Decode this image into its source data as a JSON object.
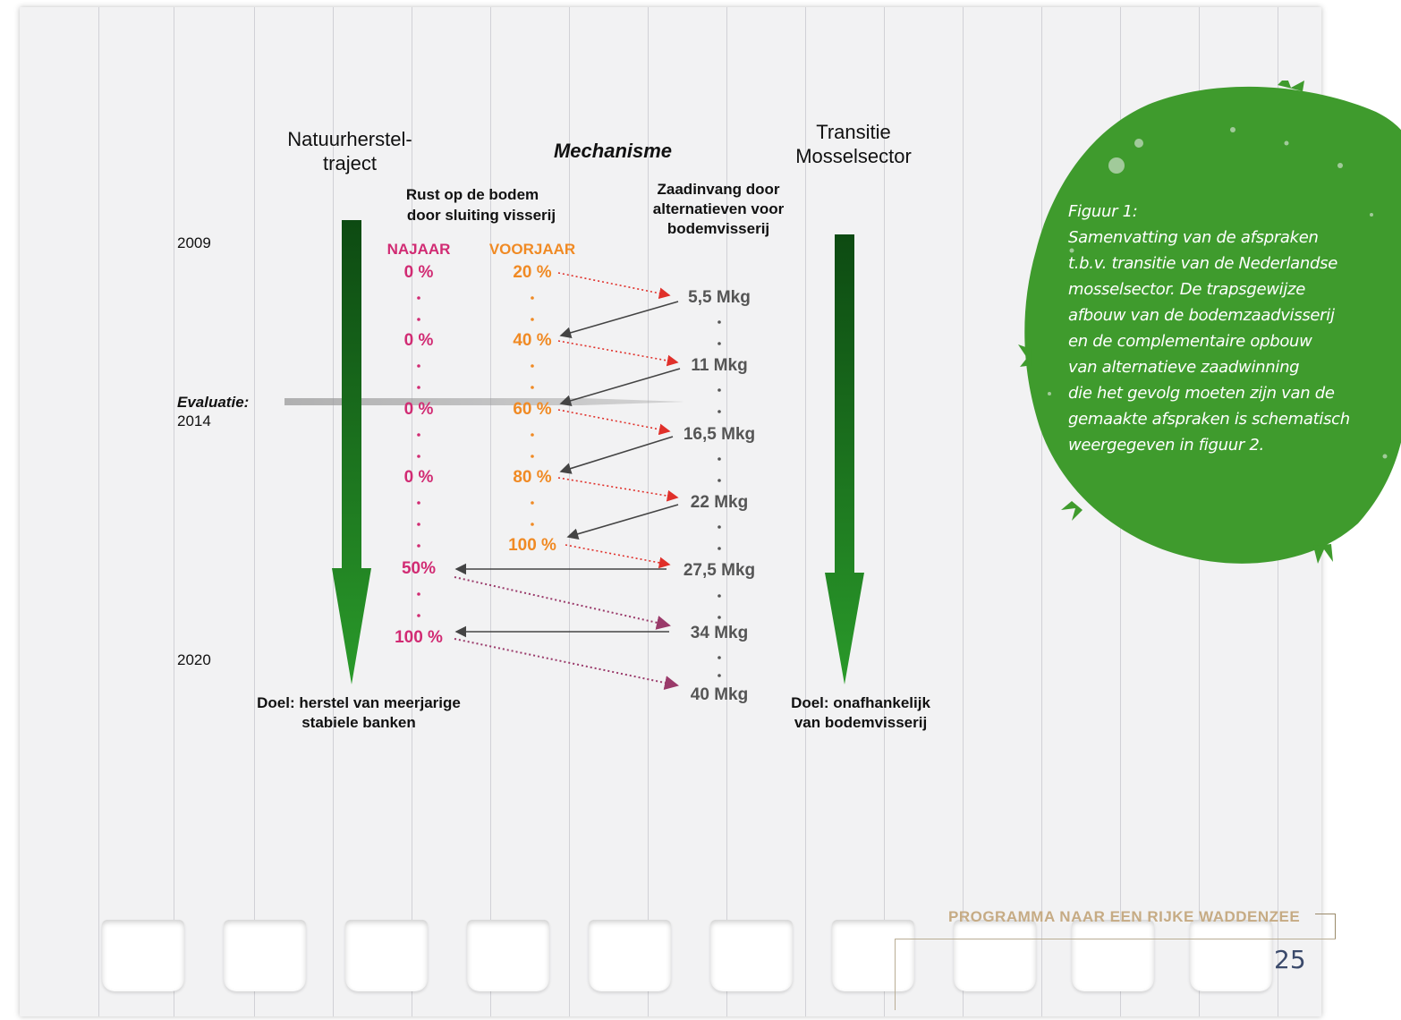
{
  "diagram": {
    "left_header": [
      "Natuurherstel-",
      "traject"
    ],
    "center_header": "Mechanisme",
    "right_header": [
      "Transitie",
      "Mosselsector"
    ],
    "left_sub": [
      "Rust op de bodem",
      "door sluiting visserij"
    ],
    "right_sub": [
      "Zaadinvang door",
      "alternatieven voor",
      "bodemvisserij"
    ],
    "col_najaar": "NAJAAR",
    "col_voorjaar": "VOORJAAR",
    "year_start": "2009",
    "evaluation_label": "Evaluatie:",
    "evaluation_year": "2014",
    "year_end": "2020",
    "najaar_values": [
      "0 %",
      "0 %",
      "0 %",
      "0 %",
      "50%",
      "100 %"
    ],
    "voorjaar_values": [
      "20 %",
      "40 %",
      "60 %",
      "80 %",
      "100 %"
    ],
    "mkg_values": [
      "5,5 Mkg",
      "11 Mkg",
      "16,5 Mkg",
      "22 Mkg",
      "27,5 Mkg",
      "34 Mkg",
      "40 Mkg"
    ],
    "goal_left": [
      "Doel: herstel van meerjarige",
      "stabiele banken"
    ],
    "goal_right": [
      "Doel: onafhankelijk",
      "van bodemvisserij"
    ],
    "colors": {
      "najaar": "#d12b73",
      "voorjaar": "#f08a24",
      "arrow_dark": "#0d4a12",
      "arrow_light": "#2a9a2a",
      "mkg": "#555555"
    }
  },
  "caption": {
    "lines": [
      "Figuur 1:",
      "Samenvatting van de afspraken",
      "t.b.v. transitie van de Nederlandse",
      "mosselsector. De trapsgewijze",
      "afbouw van de bodemzaadvisserij",
      "en de complementaire opbouw",
      "van alternatieve zaadwinning",
      "die het gevolg moeten zijn van de",
      "gemaakte afspraken is schematisch",
      "weergegeven in figuur 2."
    ],
    "badge_color": "#3f9b2d"
  },
  "footer": {
    "title": "PROGRAMMA NAAR EEN RIJKE WADDENZEE",
    "page_number": "25"
  }
}
